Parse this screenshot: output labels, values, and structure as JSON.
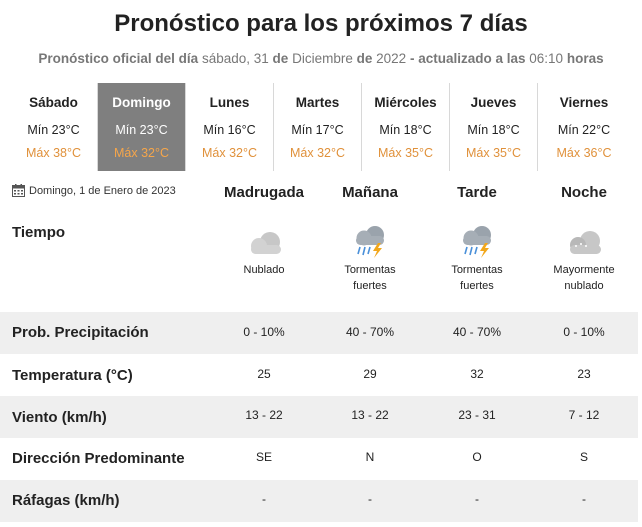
{
  "header": {
    "title": "Pronóstico para los próximos 7 días",
    "subtitle_prefix": "Pronóstico oficial del día",
    "weekday": "sábado",
    "day": "31",
    "of1": "de",
    "month": "Diciembre",
    "of2": "de",
    "year": "2022",
    "updated_label": "- actualizado a las",
    "time": "06:10",
    "hours_label": "horas"
  },
  "days": [
    {
      "name": "Sábado",
      "min": "Mín 23°C",
      "max": "Máx 38°C",
      "active": false
    },
    {
      "name": "Domingo",
      "min": "Mín 23°C",
      "max": "Máx 32°C",
      "active": true
    },
    {
      "name": "Lunes",
      "min": "Mín 16°C",
      "max": "Máx 32°C",
      "active": false
    },
    {
      "name": "Martes",
      "min": "Mín 17°C",
      "max": "Máx 32°C",
      "active": false
    },
    {
      "name": "Miércoles",
      "min": "Mín 18°C",
      "max": "Máx 35°C",
      "active": false
    },
    {
      "name": "Jueves",
      "min": "Mín 18°C",
      "max": "Máx 35°C",
      "active": false
    },
    {
      "name": "Viernes",
      "min": "Mín 22°C",
      "max": "Máx 36°C",
      "active": false
    }
  ],
  "selected_date": "Domingo, 1 de Enero de 2023",
  "periods": [
    "Madrugada",
    "Mañana",
    "Tarde",
    "Noche"
  ],
  "weather": {
    "label": "Tiempo",
    "items": [
      {
        "icon": "cloudy-icon",
        "desc": "Nublado"
      },
      {
        "icon": "thunderstorm-icon",
        "desc": "Tormentas\nfuertes"
      },
      {
        "icon": "thunderstorm-icon",
        "desc": "Tormentas\nfuertes"
      },
      {
        "icon": "mostly-cloudy-night-icon",
        "desc": "Mayormente\nnublado"
      }
    ]
  },
  "rows": [
    {
      "label": "Prob. Precipitación",
      "values": [
        "0 - 10%",
        "40 - 70%",
        "40 - 70%",
        "0 - 10%"
      ]
    },
    {
      "label": "Temperatura (°C)",
      "values": [
        "25",
        "29",
        "32",
        "23"
      ]
    },
    {
      "label": "Viento (km/h)",
      "values": [
        "13 - 22",
        "13 - 22",
        "23 - 31",
        "7 - 12"
      ]
    },
    {
      "label": "Dirección Predominante",
      "values": [
        "SE",
        "N",
        "O",
        "S"
      ]
    },
    {
      "label": "Ráfagas (km/h)",
      "values": [
        "-",
        "-",
        "-",
        "-"
      ]
    }
  ],
  "colors": {
    "max_temp": "#e0913b",
    "active_day_bg": "#7f7f7f",
    "row_shade": "#efefef"
  }
}
